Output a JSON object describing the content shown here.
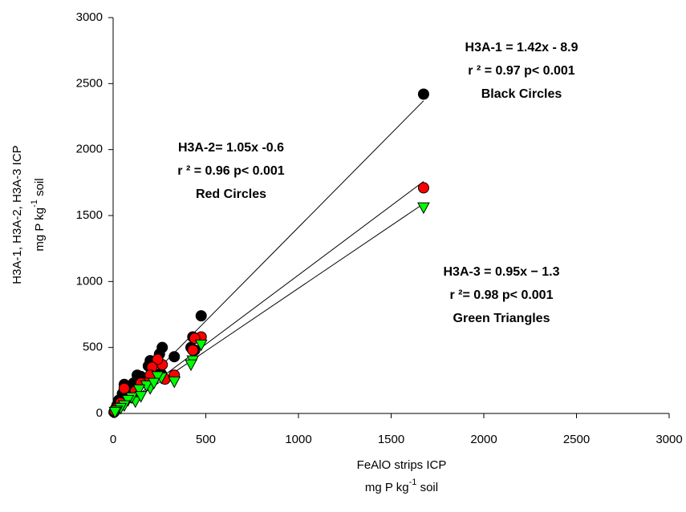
{
  "chart_data": {
    "type": "scatter",
    "xlabel": [
      "FeAlO strips ICP",
      "mg P kg",
      "-1",
      " soil"
    ],
    "ylabel": [
      "H3A-1, H3A-2, H3A-3 ICP",
      "mg P kg",
      "-1",
      " soil"
    ],
    "xlim": [
      0,
      3000
    ],
    "xticks": [
      0,
      500,
      1000,
      1500,
      2000,
      2500,
      3000
    ],
    "ylim": [
      0,
      3000
    ],
    "yticks": [
      0,
      500,
      1000,
      1500,
      2000,
      2500,
      3000
    ],
    "annotations": [
      [
        "H3A-1 = 1.42x - 8.9",
        "r ² = 0.97 p< 0.001",
        "Black Circles"
      ],
      [
        "H3A-2= 1.05x -0.6",
        "r ² = 0.96 p< 0.001",
        "Red Circles"
      ],
      [
        "H3A-3 = 0.95x − 1.3",
        "r ²= 0.98 p< 0.001",
        "Green Triangles"
      ]
    ],
    "series": [
      {
        "color": "#000000",
        "marker": "circle",
        "fit": {
          "slope": 1.42,
          "intercept": -8.9
        },
        "x": [
          1675,
          475,
          430,
          420,
          330,
          265,
          250,
          230,
          200,
          190,
          130,
          110,
          60,
          50,
          30,
          20,
          10,
          5,
          150,
          100,
          80,
          260,
          440
        ],
        "values": [
          2420,
          740,
          580,
          500,
          430,
          500,
          450,
          390,
          400,
          360,
          290,
          230,
          220,
          150,
          100,
          60,
          30,
          10,
          280,
          180,
          150,
          300,
          480
        ]
      },
      {
        "color": "#ff0000",
        "marker": "circle",
        "fit": {
          "slope": 1.05,
          "intercept": -0.6
        },
        "x": [
          1675,
          475,
          430,
          440,
          330,
          265,
          240,
          210,
          200,
          180,
          60,
          100,
          40,
          20,
          10,
          150,
          280,
          120
        ],
        "values": [
          1710,
          580,
          480,
          570,
          290,
          370,
          410,
          350,
          290,
          230,
          190,
          120,
          80,
          40,
          20,
          230,
          260,
          170
        ]
      },
      {
        "color": "#00ff00",
        "marker": "triangle-down",
        "fit": {
          "slope": 0.95,
          "intercept": -1.3
        },
        "x": [
          1675,
          475,
          430,
          420,
          330,
          260,
          240,
          200,
          180,
          140,
          120,
          100,
          80,
          60,
          40,
          20,
          10,
          150,
          220
        ],
        "values": [
          1560,
          520,
          400,
          370,
          240,
          270,
          280,
          190,
          210,
          180,
          90,
          120,
          100,
          60,
          40,
          20,
          10,
          130,
          230
        ]
      }
    ]
  }
}
